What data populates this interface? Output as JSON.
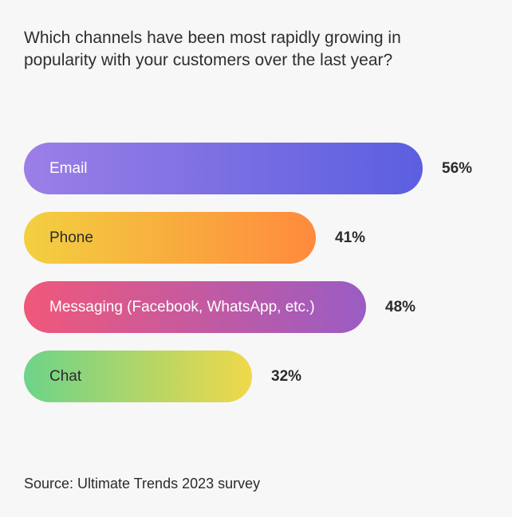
{
  "chart_data": {
    "type": "bar",
    "orientation": "horizontal",
    "title": "Which channels have been most rapidly growing in popularity with your customers over the last year?",
    "categories": [
      "Email",
      "Phone",
      "Messaging (Facebook, WhatsApp, etc.)",
      "Chat"
    ],
    "values": [
      56,
      41,
      48,
      32
    ],
    "value_labels": [
      "56%",
      "41%",
      "48%",
      "32%"
    ],
    "unit": "%",
    "xlim": [
      0,
      56
    ],
    "grid": false,
    "legend": "none",
    "colors": [
      [
        "#9b7fe6",
        "#5b5fe0"
      ],
      [
        "#f2d040",
        "#ff8a3d"
      ],
      [
        "#f0587a",
        "#9a5cc4"
      ],
      [
        "#6dd38a",
        "#f0d84a"
      ]
    ]
  },
  "source": "Source: Ultimate Trends 2023 survey"
}
